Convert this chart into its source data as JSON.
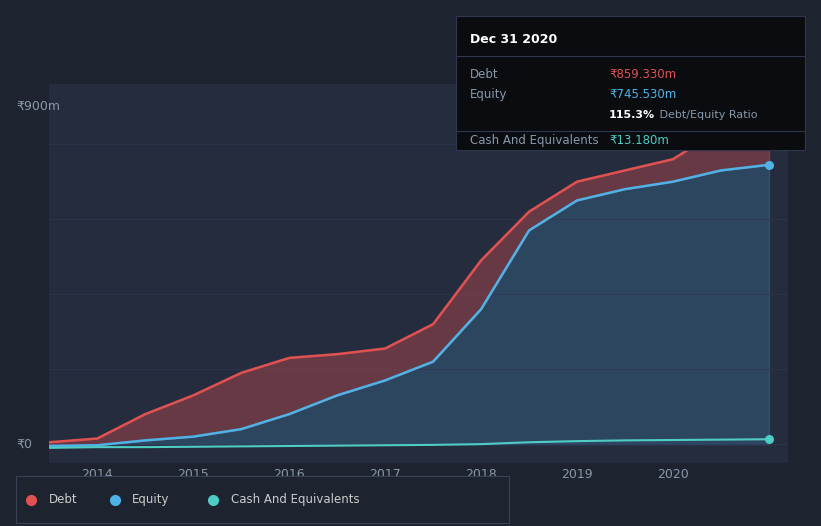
{
  "background_color": "#1e2330",
  "chart_bg_color": "#252c3d",
  "years": [
    2013.5,
    2014,
    2014.5,
    2015,
    2015.5,
    2016,
    2016.5,
    2017,
    2017.5,
    2018,
    2018.5,
    2019,
    2019.5,
    2020,
    2020.5,
    2021
  ],
  "debt": [
    5,
    15,
    80,
    130,
    190,
    230,
    240,
    255,
    320,
    490,
    620,
    700,
    730,
    760,
    840,
    859
  ],
  "equity": [
    -5,
    -3,
    10,
    20,
    40,
    80,
    130,
    170,
    220,
    360,
    570,
    650,
    680,
    700,
    730,
    745
  ],
  "cash": [
    -10,
    -8,
    -8,
    -7,
    -6,
    -5,
    -4,
    -3,
    -2,
    0,
    5,
    8,
    10,
    11,
    12,
    13
  ],
  "x_ticks": [
    2014,
    2015,
    2016,
    2017,
    2018,
    2019,
    2020
  ],
  "x_tick_labels": [
    "2014",
    "2015",
    "2016",
    "2017",
    "2018",
    "2019",
    "2020"
  ],
  "y_label": "₹900m",
  "y0_label": "₹0",
  "ylim": [
    -50,
    960
  ],
  "xlim": [
    2013.5,
    2021.2
  ],
  "debt_color": "#e05252",
  "equity_color": "#4fb3e8",
  "cash_color": "#4ecdc4",
  "grid_color": "#2e3650",
  "tooltip_bg": "#0a0c10",
  "tooltip_border": "#2e3650",
  "tooltip_title": "Dec 31 2020",
  "tooltip_debt_label": "Debt",
  "tooltip_debt_value": "₹859.330m",
  "tooltip_equity_label": "Equity",
  "tooltip_equity_value": "₹745.530m",
  "tooltip_ratio_bold": "115.3%",
  "tooltip_ratio_normal": " Debt/Equity Ratio",
  "tooltip_cash_label": "Cash And Equivalents",
  "tooltip_cash_value": "₹13.180m",
  "legend_labels": [
    "Debt",
    "Equity",
    "Cash And Equivalents"
  ],
  "legend_colors": [
    "#e05252",
    "#4fb3e8",
    "#4ecdc4"
  ],
  "gridline_values": [
    0,
    200,
    400,
    600,
    800
  ]
}
